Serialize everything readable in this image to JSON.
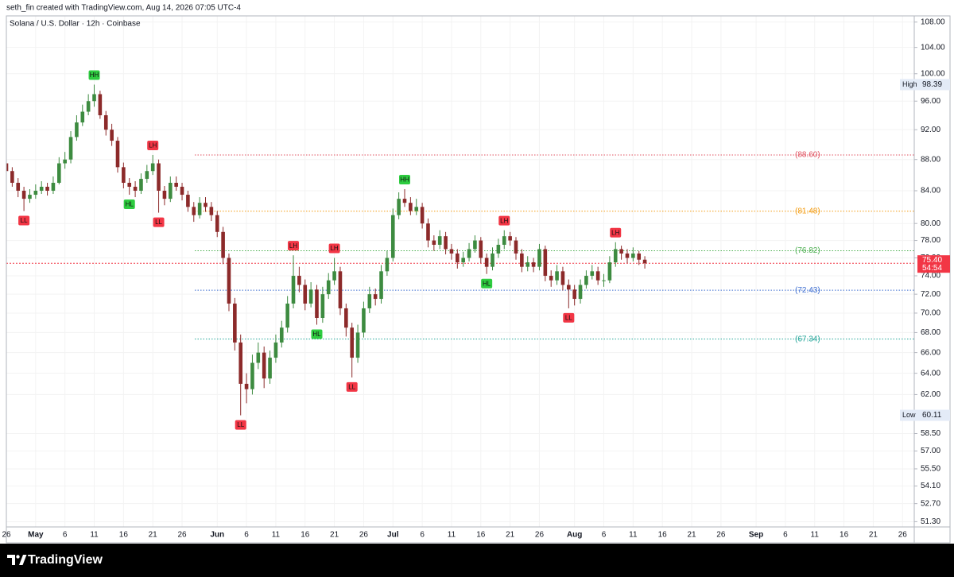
{
  "header": {
    "text": "seth_fin created with TradingView.com, Aug 14, 2026 07:05 UTC-4"
  },
  "footer": {
    "brand": "TradingView"
  },
  "chart_data": {
    "type": "candlestick",
    "title": "Solana / U.S. Dollar · 12h · Coinbase",
    "up_color": "#3d8b40",
    "down_color": "#8c2a2a",
    "log_scale": true,
    "grid": true,
    "x": [
      "2026-04-26",
      "2026-04-27",
      "2026-04-28",
      "2026-04-29",
      "2026-04-30",
      "2026-05-01",
      "2026-05-02",
      "2026-05-03",
      "2026-05-04",
      "2026-05-05",
      "2026-05-06",
      "2026-05-07",
      "2026-05-08",
      "2026-05-09",
      "2026-05-10",
      "2026-05-11",
      "2026-05-12",
      "2026-05-13",
      "2026-05-14",
      "2026-05-15",
      "2026-05-16",
      "2026-05-17",
      "2026-05-18",
      "2026-05-19",
      "2026-05-20",
      "2026-05-21",
      "2026-05-22",
      "2026-05-23",
      "2026-05-24",
      "2026-05-25",
      "2026-05-26",
      "2026-05-27",
      "2026-05-28",
      "2026-05-29",
      "2026-05-30",
      "2026-05-31",
      "2026-06-01",
      "2026-06-02",
      "2026-06-03",
      "2026-06-04",
      "2026-06-05",
      "2026-06-06",
      "2026-06-07",
      "2026-06-08",
      "2026-06-09",
      "2026-06-10",
      "2026-06-11",
      "2026-06-12",
      "2026-06-13",
      "2026-06-14",
      "2026-06-15",
      "2026-06-16",
      "2026-06-17",
      "2026-06-18",
      "2026-06-19",
      "2026-06-20",
      "2026-06-21",
      "2026-06-22",
      "2026-06-23",
      "2026-06-24",
      "2026-06-25",
      "2026-06-26",
      "2026-06-27",
      "2026-06-28",
      "2026-06-29",
      "2026-06-30",
      "2026-07-01",
      "2026-07-02",
      "2026-07-03",
      "2026-07-04",
      "2026-07-05",
      "2026-07-06",
      "2026-07-07",
      "2026-07-08",
      "2026-07-09",
      "2026-07-10",
      "2026-07-11",
      "2026-07-12",
      "2026-07-13",
      "2026-07-14",
      "2026-07-15",
      "2026-07-16",
      "2026-07-17",
      "2026-07-18",
      "2026-07-19",
      "2026-07-20",
      "2026-07-21",
      "2026-07-22",
      "2026-07-23",
      "2026-07-24",
      "2026-07-25",
      "2026-07-26",
      "2026-07-27",
      "2026-07-28",
      "2026-07-29",
      "2026-07-30",
      "2026-07-31",
      "2026-08-01",
      "2026-08-02",
      "2026-08-03",
      "2026-08-04",
      "2026-08-05",
      "2026-08-06",
      "2026-08-07",
      "2026-08-08",
      "2026-08-09",
      "2026-08-10",
      "2026-08-11",
      "2026-08-12",
      "2026-08-13"
    ],
    "open": [
      87.5,
      86.5,
      85,
      84,
      83,
      83.5,
      84,
      84.5,
      84,
      85,
      87.5,
      88,
      91,
      93,
      94.5,
      96,
      97,
      94,
      92,
      90.5,
      87,
      85,
      84.5,
      84,
      85.5,
      86.5,
      87.5,
      84,
      83,
      85,
      84.5,
      83.5,
      82,
      81,
      82.5,
      82,
      81,
      79,
      76,
      71,
      67,
      63,
      62.5,
      65,
      66,
      63.5,
      65.5,
      67,
      68.5,
      71,
      74,
      73,
      71,
      72.5,
      69.5,
      72,
      73.5,
      74.5,
      70.5,
      68.5,
      65.5,
      68,
      70.5,
      72,
      71.5,
      74.5,
      76,
      81,
      83,
      82.5,
      81.5,
      82,
      80,
      78,
      77.5,
      78.5,
      77,
      76.5,
      75.5,
      76,
      77,
      78,
      76,
      75,
      76.5,
      77.5,
      78.5,
      78,
      76.5,
      75,
      75.5,
      75,
      77,
      74,
      73.5,
      74.5,
      73,
      72.5,
      71.5,
      73,
      74,
      74.5,
      73.5,
      73.5,
      75.5,
      77,
      76.5,
      76,
      76.5,
      75.8
    ],
    "high": [
      88.3,
      87,
      85.6,
      84.5,
      84.2,
      84.8,
      85.2,
      85,
      85.8,
      88.3,
      89,
      91.8,
      94,
      95.5,
      97,
      98.39,
      97.5,
      94.6,
      92.8,
      91,
      87.6,
      85.6,
      85.2,
      86.2,
      87.3,
      88.6,
      88,
      84.6,
      85.8,
      85.8,
      85,
      84,
      82.6,
      83.2,
      83.2,
      82.6,
      81.5,
      79.6,
      76.5,
      71.6,
      67.8,
      64,
      65.8,
      67,
      66.6,
      66.2,
      67.8,
      69.2,
      71.8,
      76.3,
      75,
      73.6,
      73.3,
      73,
      72.8,
      74.3,
      76,
      75,
      71,
      69,
      68.8,
      71.2,
      72.8,
      72.6,
      75.2,
      76.8,
      81.8,
      83.8,
      84.2,
      83.2,
      83,
      82.5,
      80.6,
      78.6,
      79.2,
      79,
      77.6,
      77,
      76.7,
      77.7,
      78.6,
      78.4,
      76.5,
      77.2,
      78.2,
      79.2,
      79,
      78.4,
      77,
      76.2,
      76,
      77.6,
      77.4,
      74.6,
      75.2,
      75,
      73.6,
      73,
      73.6,
      74.6,
      75.2,
      75,
      74.2,
      76.2,
      77.8,
      77.4,
      77,
      77.2,
      76.8,
      76.2
    ],
    "low": [
      85.8,
      84.5,
      83.2,
      81.5,
      82.5,
      83,
      83.6,
      83.4,
      83.6,
      84.8,
      86.8,
      87.5,
      90.5,
      92.5,
      94,
      95.2,
      93.5,
      91.2,
      89.8,
      86.3,
      84.3,
      83.5,
      83.2,
      83.6,
      85,
      86,
      81.3,
      82.2,
      82.6,
      84,
      82.8,
      81.4,
      80.2,
      80.6,
      81.4,
      80.3,
      78.4,
      75.3,
      70.2,
      66.2,
      60.11,
      61.2,
      62,
      64.4,
      62.6,
      63,
      65,
      66.5,
      68,
      70.5,
      72.2,
      70.3,
      70.6,
      68.8,
      69,
      71.5,
      73,
      69.8,
      67.6,
      63.6,
      65,
      67.5,
      70,
      70.8,
      71,
      74,
      75.6,
      80.5,
      82,
      81,
      81,
      79.4,
      77.2,
      76.8,
      77,
      76.4,
      75.8,
      74.8,
      75,
      75.6,
      76.6,
      75.4,
      74.2,
      74.6,
      76,
      77,
      77.4,
      75.8,
      74.4,
      74.5,
      74.4,
      74.6,
      73.4,
      72.8,
      73,
      72.4,
      70.5,
      70.8,
      71,
      72.6,
      73.6,
      73,
      72.8,
      73.2,
      75,
      75.8,
      75.4,
      75.6,
      75.2,
      74.8
    ],
    "close": [
      86.5,
      85,
      84,
      83,
      83.5,
      84,
      84.5,
      84,
      85,
      87.5,
      88,
      91,
      93,
      94.5,
      96,
      97,
      94,
      92,
      90.5,
      87,
      85,
      84.5,
      84,
      85.5,
      86.5,
      87.5,
      84,
      83,
      85,
      84.5,
      83.5,
      82,
      81,
      82.5,
      82,
      81,
      79,
      76,
      71,
      67,
      63,
      62.5,
      65,
      66,
      63.5,
      65.5,
      67,
      68.5,
      71,
      74,
      73,
      71,
      72.5,
      69.5,
      72,
      73.5,
      74.5,
      70.5,
      68.5,
      65.5,
      68,
      70.5,
      72,
      71.5,
      74.5,
      76,
      81,
      83,
      82.5,
      81.5,
      82,
      80,
      78,
      77.5,
      78.5,
      77,
      76.5,
      75.5,
      76,
      77,
      78,
      76,
      75,
      76.5,
      77.5,
      78.5,
      78,
      76.5,
      75,
      75.5,
      75,
      77,
      74,
      73.5,
      74.5,
      73,
      72.5,
      71.5,
      73,
      74,
      74.5,
      73.5,
      73.5,
      75.5,
      77,
      76.5,
      76,
      76.5,
      75.8,
      75.4
    ],
    "xlim": [
      "2026-04-26",
      "2026-09-28"
    ],
    "xticks": [
      {
        "value": "2026-04-26",
        "label": "26"
      },
      {
        "value": "2026-05-01",
        "label": "May"
      },
      {
        "value": "2026-05-06",
        "label": "6"
      },
      {
        "value": "2026-05-11",
        "label": "11"
      },
      {
        "value": "2026-05-16",
        "label": "16"
      },
      {
        "value": "2026-05-21",
        "label": "21"
      },
      {
        "value": "2026-05-26",
        "label": "26"
      },
      {
        "value": "2026-06-01",
        "label": "Jun"
      },
      {
        "value": "2026-06-06",
        "label": "6"
      },
      {
        "value": "2026-06-11",
        "label": "11"
      },
      {
        "value": "2026-06-16",
        "label": "16"
      },
      {
        "value": "2026-06-21",
        "label": "21"
      },
      {
        "value": "2026-06-26",
        "label": "26"
      },
      {
        "value": "2026-07-01",
        "label": "Jul"
      },
      {
        "value": "2026-07-06",
        "label": "6"
      },
      {
        "value": "2026-07-11",
        "label": "11"
      },
      {
        "value": "2026-07-16",
        "label": "16"
      },
      {
        "value": "2026-07-21",
        "label": "21"
      },
      {
        "value": "2026-07-26",
        "label": "26"
      },
      {
        "value": "2026-08-01",
        "label": "Aug"
      },
      {
        "value": "2026-08-06",
        "label": "6"
      },
      {
        "value": "2026-08-11",
        "label": "11"
      },
      {
        "value": "2026-08-16",
        "label": "16"
      },
      {
        "value": "2026-08-21",
        "label": "21"
      },
      {
        "value": "2026-08-26",
        "label": "26"
      },
      {
        "value": "2026-09-01",
        "label": "Sep"
      },
      {
        "value": "2026-09-06",
        "label": "6"
      },
      {
        "value": "2026-09-11",
        "label": "11"
      },
      {
        "value": "2026-09-16",
        "label": "16"
      },
      {
        "value": "2026-09-21",
        "label": "21"
      },
      {
        "value": "2026-09-26",
        "label": "26"
      }
    ],
    "ylim": [
      50.9,
      109
    ],
    "yticks": [
      {
        "value": 108,
        "label": "108.00"
      },
      {
        "value": 104,
        "label": "104.00"
      },
      {
        "value": 100,
        "label": "100.00"
      },
      {
        "value": 96,
        "label": "96.00"
      },
      {
        "value": 92,
        "label": "92.00"
      },
      {
        "value": 88,
        "label": "88.00"
      },
      {
        "value": 84,
        "label": "84.00"
      },
      {
        "value": 80,
        "label": "80.00"
      },
      {
        "value": 78,
        "label": "78.00"
      },
      {
        "value": 76,
        "label": "76.00"
      },
      {
        "value": 74,
        "label": "74.00"
      },
      {
        "value": 72,
        "label": "72.00"
      },
      {
        "value": 70,
        "label": "70.00"
      },
      {
        "value": 68,
        "label": "68.00"
      },
      {
        "value": 66,
        "label": "66.00"
      },
      {
        "value": 64,
        "label": "64.00"
      },
      {
        "value": 62,
        "label": "62.00"
      },
      {
        "value": 58.5,
        "label": "58.50"
      },
      {
        "value": 57,
        "label": "57.00"
      },
      {
        "value": 55.5,
        "label": "55.50"
      },
      {
        "value": 54.1,
        "label": "54.10"
      },
      {
        "value": 52.7,
        "label": "52.70"
      },
      {
        "value": 51.3,
        "label": "51.30"
      }
    ],
    "levels": [
      {
        "value": 88.6,
        "label": "(88.60)",
        "color": "#e05260"
      },
      {
        "value": 81.48,
        "label": "(81.48)",
        "color": "#f39c12"
      },
      {
        "value": 76.82,
        "label": "(76.82)",
        "color": "#4caf50"
      },
      {
        "value": 72.43,
        "label": "(72.43)",
        "color": "#3f6fd1"
      },
      {
        "value": 67.34,
        "label": "(67.34)",
        "color": "#26a69a"
      }
    ],
    "last_price": {
      "value": 75.4,
      "label": "75.40",
      "countdown": "54:54",
      "color": "#f23645"
    },
    "high_marker": {
      "text": "High",
      "value": 98.39,
      "label": "98.39"
    },
    "low_marker": {
      "text": "Low",
      "value": 60.11,
      "label": "60.11"
    },
    "pivots": [
      {
        "text": "LL",
        "x": "2026-04-29",
        "y": 81.5,
        "position": "below",
        "color": "#f23645"
      },
      {
        "text": "HH",
        "x": "2026-05-11",
        "y": 98.39,
        "position": "above",
        "color": "#2ecc40"
      },
      {
        "text": "HL",
        "x": "2026-05-17",
        "y": 83.5,
        "position": "below",
        "color": "#2ecc40"
      },
      {
        "text": "LH",
        "x": "2026-05-21",
        "y": 88.6,
        "position": "above",
        "color": "#f23645"
      },
      {
        "text": "LL",
        "x": "2026-05-22",
        "y": 81.3,
        "position": "below",
        "color": "#f23645"
      },
      {
        "text": "LL",
        "x": "2026-06-05",
        "y": 60.11,
        "position": "below",
        "color": "#f23645"
      },
      {
        "text": "LH",
        "x": "2026-06-14",
        "y": 76.3,
        "position": "above",
        "color": "#f23645"
      },
      {
        "text": "HL",
        "x": "2026-06-18",
        "y": 68.8,
        "position": "below",
        "color": "#2ecc40"
      },
      {
        "text": "LH",
        "x": "2026-06-21",
        "y": 76,
        "position": "above",
        "color": "#f23645"
      },
      {
        "text": "LL",
        "x": "2026-06-24",
        "y": 63.6,
        "position": "below",
        "color": "#f23645"
      },
      {
        "text": "HH",
        "x": "2026-07-03",
        "y": 84.2,
        "position": "above",
        "color": "#2ecc40"
      },
      {
        "text": "HL",
        "x": "2026-07-17",
        "y": 74.2,
        "position": "below",
        "color": "#2ecc40"
      },
      {
        "text": "LH",
        "x": "2026-07-20",
        "y": 79.2,
        "position": "above",
        "color": "#f23645"
      },
      {
        "text": "LL",
        "x": "2026-07-31",
        "y": 70.5,
        "position": "below",
        "color": "#f23645"
      },
      {
        "text": "LH",
        "x": "2026-08-08",
        "y": 77.8,
        "position": "above",
        "color": "#f23645"
      }
    ]
  }
}
